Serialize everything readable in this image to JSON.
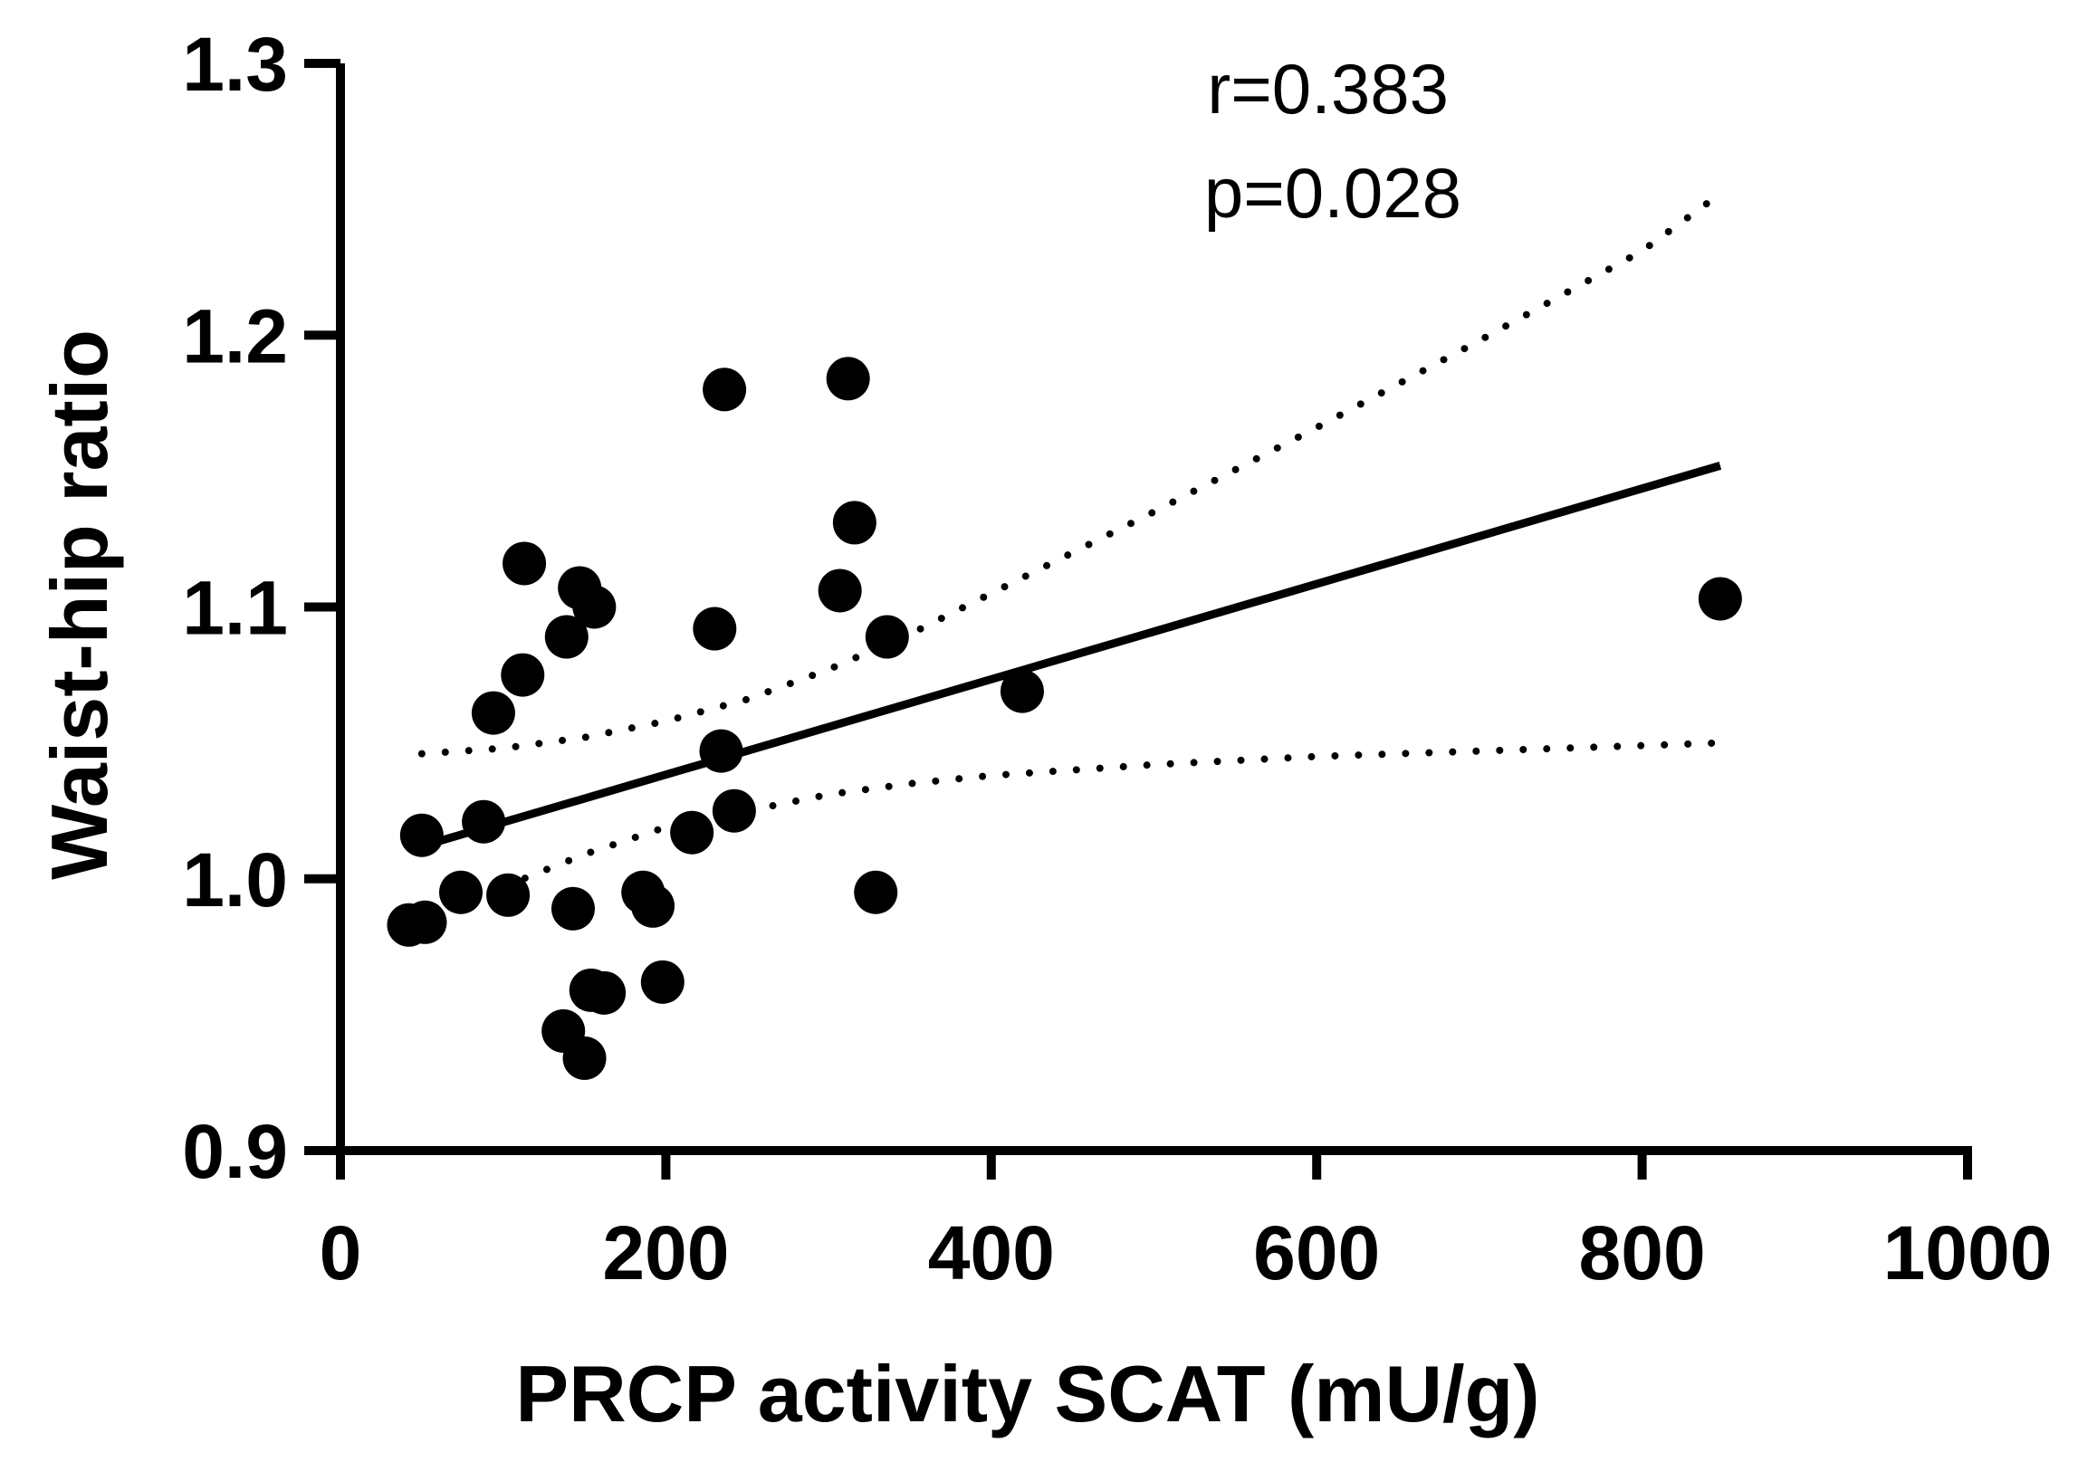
{
  "chart_data": {
    "type": "scatter",
    "xlabel": "PRCP activity SCAT (mU/g)",
    "ylabel": "Waist-hip ratio",
    "xlim": [
      0,
      1000
    ],
    "ylim": [
      0.9,
      1.3
    ],
    "xticks": [
      0,
      200,
      400,
      600,
      800,
      1000
    ],
    "xtick_labels": [
      "0",
      "200",
      "400",
      "600",
      "800",
      "1000"
    ],
    "yticks": [
      0.9,
      1.0,
      1.1,
      1.2,
      1.3
    ],
    "ytick_labels": [
      "0.9",
      "1.0",
      "1.1",
      "1.2",
      "1.3"
    ],
    "grid": false,
    "annotations": {
      "r": "r=0.383",
      "p": "p=0.028"
    },
    "points": [
      {
        "x": 42,
        "y": 0.983
      },
      {
        "x": 52,
        "y": 0.984
      },
      {
        "x": 50,
        "y": 1.016
      },
      {
        "x": 74,
        "y": 0.995
      },
      {
        "x": 88,
        "y": 1.021
      },
      {
        "x": 94,
        "y": 1.061
      },
      {
        "x": 103,
        "y": 0.994
      },
      {
        "x": 112,
        "y": 1.075
      },
      {
        "x": 113,
        "y": 1.116
      },
      {
        "x": 139,
        "y": 1.089
      },
      {
        "x": 143,
        "y": 0.989
      },
      {
        "x": 137,
        "y": 0.944
      },
      {
        "x": 147,
        "y": 1.107
      },
      {
        "x": 150,
        "y": 0.934
      },
      {
        "x": 154,
        "y": 0.959
      },
      {
        "x": 156,
        "y": 1.1
      },
      {
        "x": 162,
        "y": 0.958
      },
      {
        "x": 186,
        "y": 0.995
      },
      {
        "x": 192,
        "y": 0.99
      },
      {
        "x": 198,
        "y": 0.962
      },
      {
        "x": 216,
        "y": 1.017
      },
      {
        "x": 230,
        "y": 1.092
      },
      {
        "x": 234,
        "y": 1.047
      },
      {
        "x": 236,
        "y": 1.18
      },
      {
        "x": 242,
        "y": 1.025
      },
      {
        "x": 307,
        "y": 1.106
      },
      {
        "x": 312,
        "y": 1.184
      },
      {
        "x": 316,
        "y": 1.131
      },
      {
        "x": 329,
        "y": 0.995
      },
      {
        "x": 336,
        "y": 1.089
      },
      {
        "x": 419,
        "y": 1.069
      },
      {
        "x": 848,
        "y": 1.103
      }
    ],
    "fit_line": {
      "x": [
        50,
        848
      ],
      "y": [
        1.012,
        1.152
      ]
    },
    "ci_upper": {
      "x": [
        50,
        100,
        150,
        200,
        250,
        300,
        350,
        400,
        500,
        600,
        700,
        800,
        848
      ],
      "y": [
        1.046,
        1.048,
        1.052,
        1.058,
        1.066,
        1.077,
        1.09,
        1.105,
        1.135,
        1.166,
        1.198,
        1.231,
        1.252
      ]
    },
    "ci_lower": {
      "x": [
        100,
        150,
        200,
        250,
        300,
        350,
        400,
        500,
        600,
        700,
        800,
        848
      ],
      "y": [
        0.997,
        1.009,
        1.019,
        1.025,
        1.031,
        1.035,
        1.038,
        1.042,
        1.045,
        1.047,
        1.049,
        1.05
      ]
    }
  }
}
